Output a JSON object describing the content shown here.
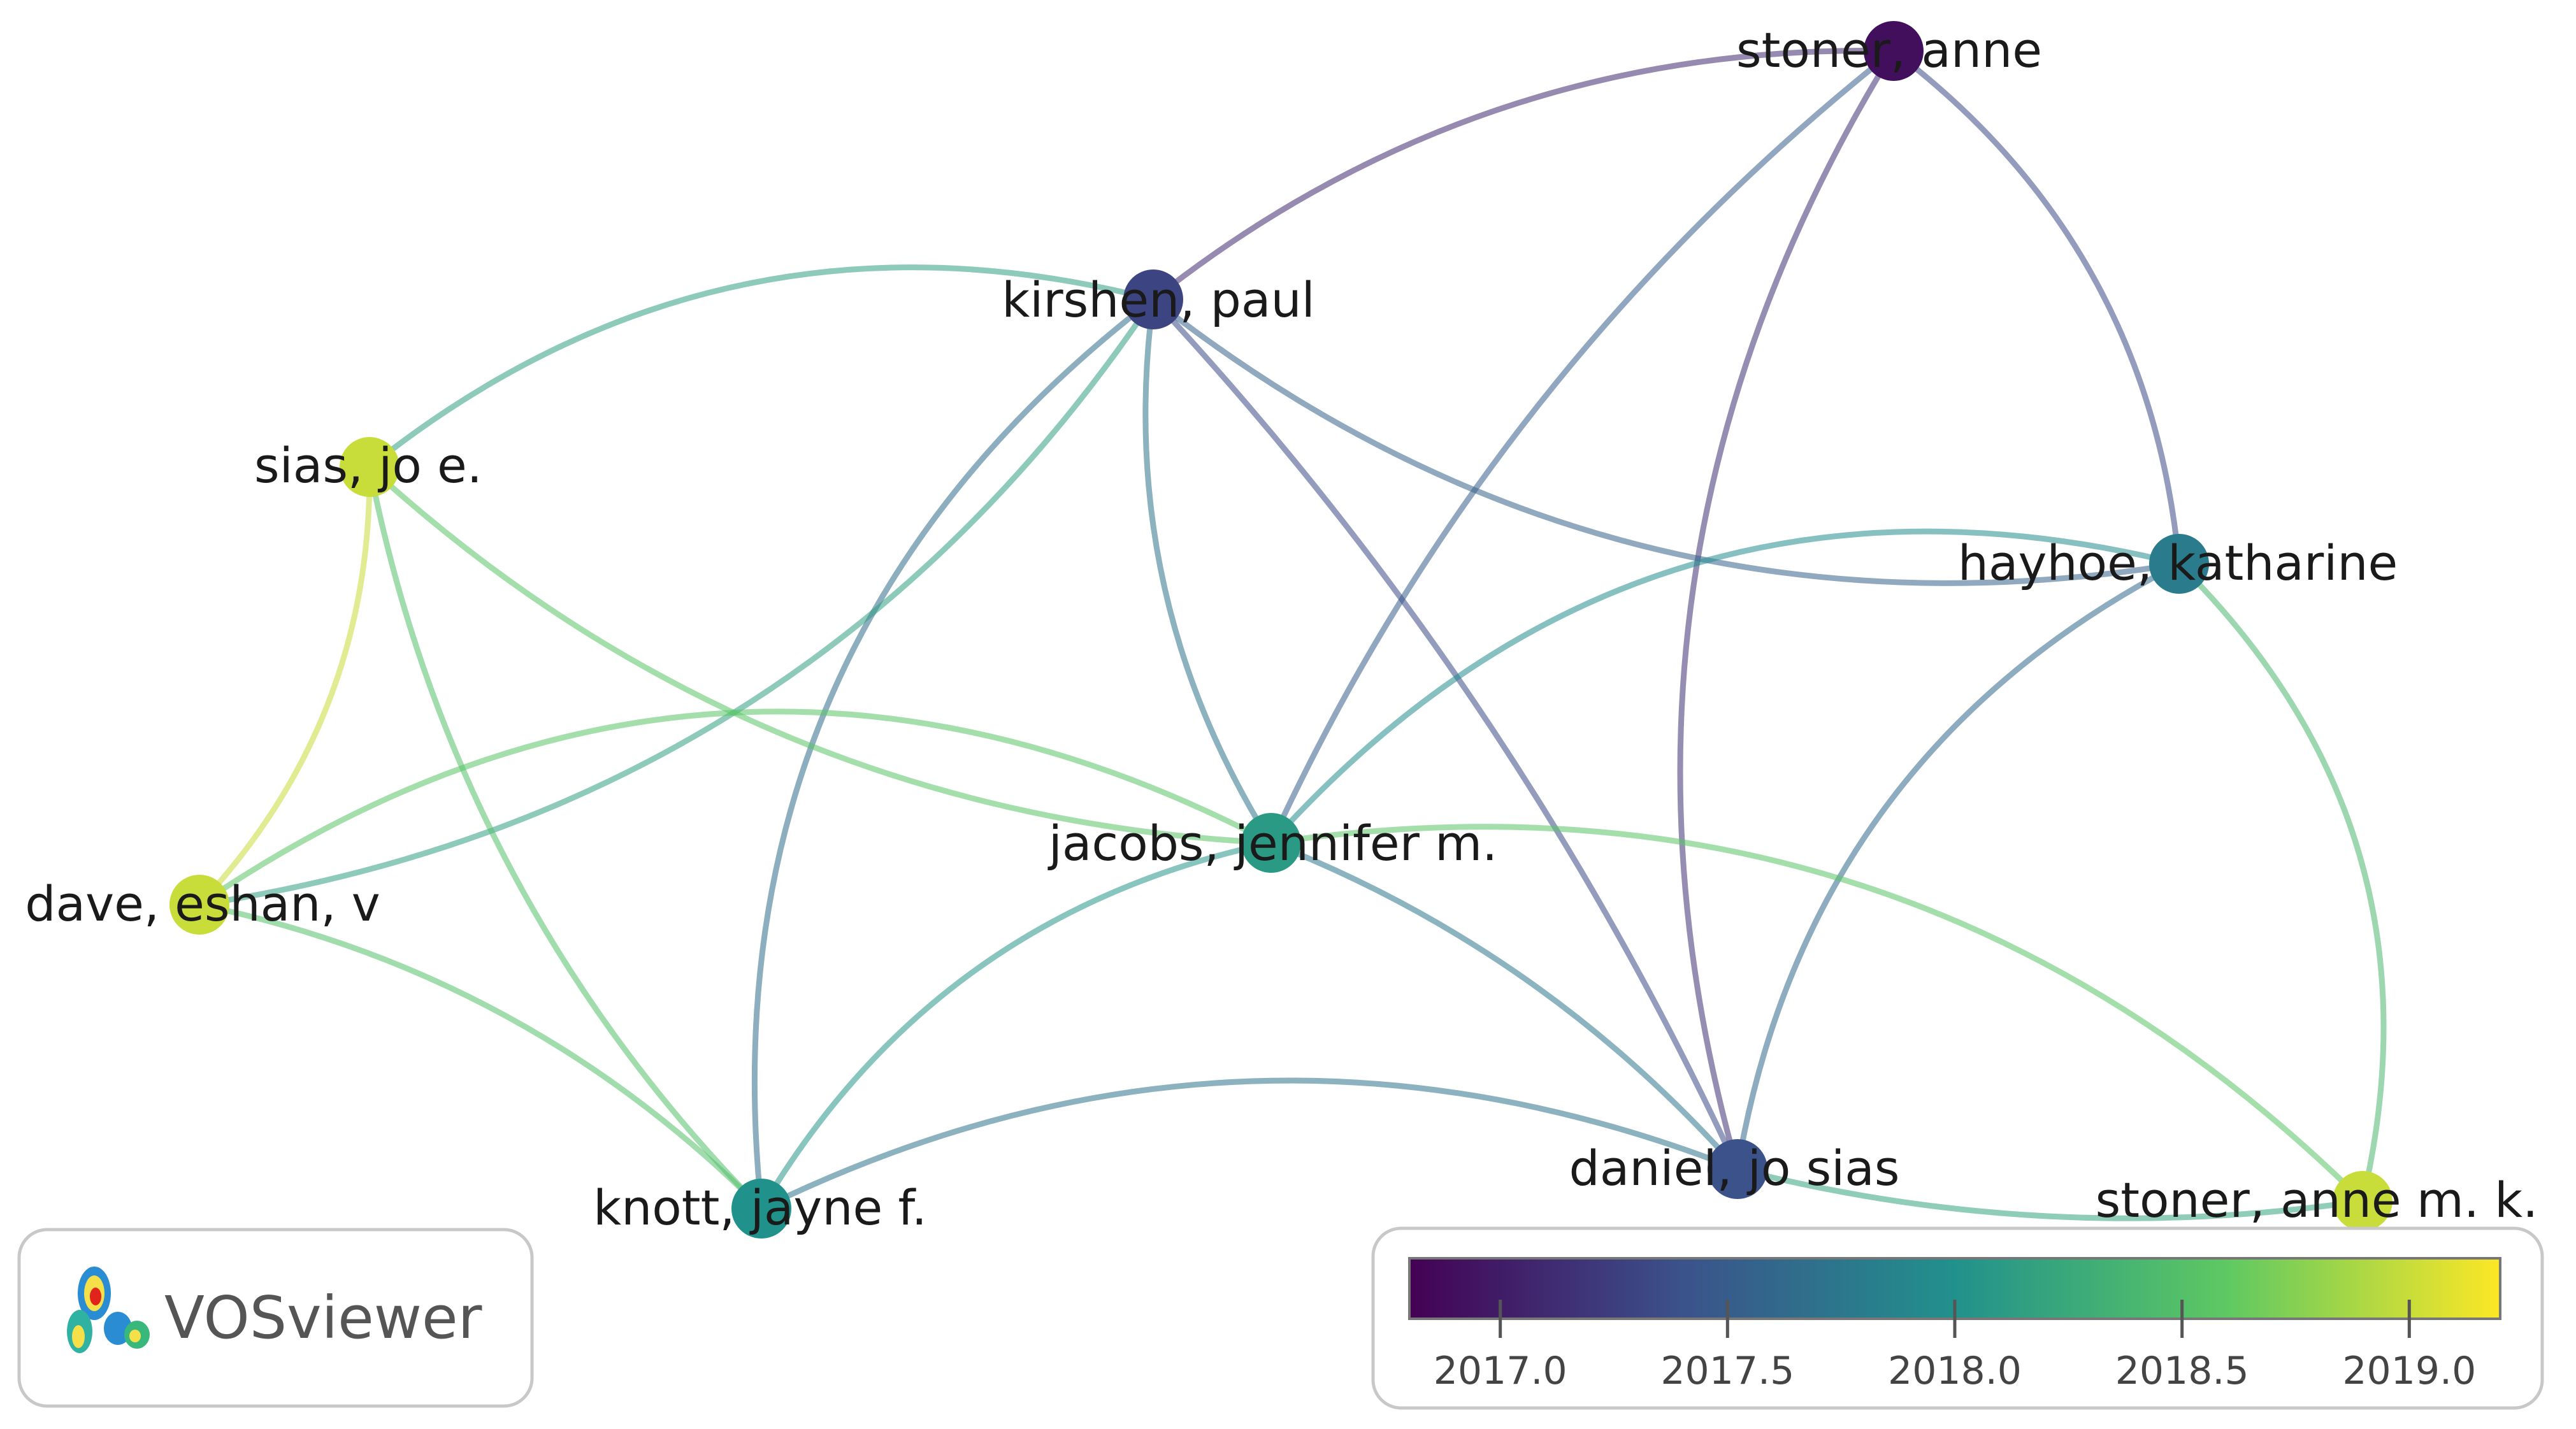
{
  "app": {
    "brand": "VOSviewer"
  },
  "colors": {
    "scale": [
      "#440154",
      "#3b528b",
      "#21918c",
      "#5ec962",
      "#fde725"
    ],
    "frame": "#c8c8c8",
    "text": "#1a1a1a"
  },
  "network": {
    "nodes": [
      {
        "id": "stoner_anne",
        "label": "stoner, anne",
        "year": 2016.9
      },
      {
        "id": "kirshen_paul",
        "label": "kirshen, paul",
        "year": 2017.3
      },
      {
        "id": "sias_jo_e",
        "label": "sias, jo e.",
        "year": 2019.0
      },
      {
        "id": "hayhoe_katharine",
        "label": "hayhoe, katharine",
        "year": 2017.8
      },
      {
        "id": "jacobs_jennifer",
        "label": "jacobs, jennifer m.",
        "year": 2018.1
      },
      {
        "id": "dave_eshan",
        "label": "dave, eshan, v",
        "year": 2019.0
      },
      {
        "id": "daniel_jo_sias",
        "label": "daniel, jo sias",
        "year": 2017.4
      },
      {
        "id": "knott_jayne",
        "label": "knott, jayne f.",
        "year": 2018.0
      },
      {
        "id": "stoner_anne_mk",
        "label": "stoner, anne m. k.",
        "year": 2019.0
      }
    ],
    "links": [
      [
        "stoner_anne",
        "kirshen_paul"
      ],
      [
        "stoner_anne",
        "hayhoe_katharine"
      ],
      [
        "stoner_anne",
        "jacobs_jennifer"
      ],
      [
        "stoner_anne",
        "daniel_jo_sias"
      ],
      [
        "kirshen_paul",
        "sias_jo_e"
      ],
      [
        "kirshen_paul",
        "jacobs_jennifer"
      ],
      [
        "kirshen_paul",
        "hayhoe_katharine"
      ],
      [
        "kirshen_paul",
        "daniel_jo_sias"
      ],
      [
        "kirshen_paul",
        "knott_jayne"
      ],
      [
        "kirshen_paul",
        "dave_eshan"
      ],
      [
        "sias_jo_e",
        "dave_eshan"
      ],
      [
        "sias_jo_e",
        "jacobs_jennifer"
      ],
      [
        "sias_jo_e",
        "knott_jayne"
      ],
      [
        "hayhoe_katharine",
        "jacobs_jennifer"
      ],
      [
        "hayhoe_katharine",
        "daniel_jo_sias"
      ],
      [
        "hayhoe_katharine",
        "stoner_anne_mk"
      ],
      [
        "jacobs_jennifer",
        "daniel_jo_sias"
      ],
      [
        "jacobs_jennifer",
        "knott_jayne"
      ],
      [
        "jacobs_jennifer",
        "dave_eshan"
      ],
      [
        "jacobs_jennifer",
        "stoner_anne_mk"
      ],
      [
        "dave_eshan",
        "knott_jayne"
      ],
      [
        "knott_jayne",
        "daniel_jo_sias"
      ],
      [
        "daniel_jo_sias",
        "stoner_anne_mk"
      ]
    ]
  },
  "legend": {
    "min": 2016.8,
    "max": 2019.2,
    "ticks": [
      "2017.0",
      "2017.5",
      "2018.0",
      "2018.5",
      "2019.0"
    ]
  }
}
